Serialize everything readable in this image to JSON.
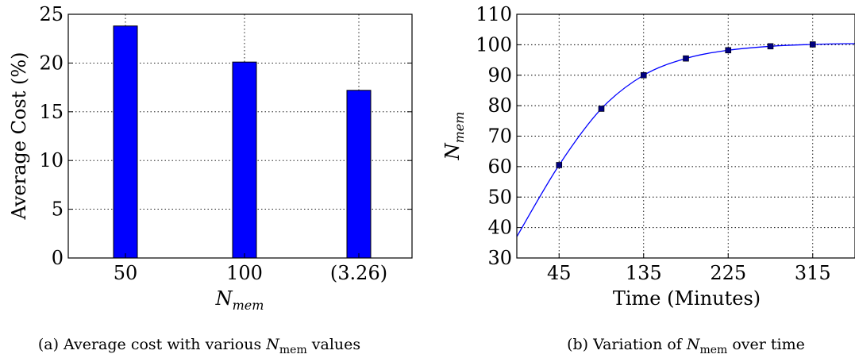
{
  "chart_data": [
    {
      "type": "bar",
      "categories": [
        "50",
        "100",
        "(3.26)"
      ],
      "values": [
        23.8,
        20.1,
        17.2
      ],
      "ylim": [
        0,
        25
      ],
      "yticks": [
        "0",
        "5",
        "10",
        "15",
        "20",
        "25"
      ],
      "ylabel": "Average Cost (%)",
      "xlabel_base": "N",
      "xlabel_sub": "mem",
      "bar_color": "#0000ff",
      "grid": true,
      "caption": {
        "prefix": "(a) Average cost with various ",
        "var_base": "N",
        "var_sub": "mem",
        "suffix": " values"
      }
    },
    {
      "type": "line",
      "x": [
        45,
        90,
        135,
        180,
        225,
        270,
        315
      ],
      "y": [
        60.5,
        79,
        90,
        95.5,
        98.2,
        99.5,
        100.1
      ],
      "curve_start": {
        "x": 0,
        "y": 37
      },
      "curve_end": {
        "x": 360,
        "y": 100.4
      },
      "xlim": [
        0,
        360
      ],
      "ylim": [
        30,
        110
      ],
      "xticks": [
        "45",
        "135",
        "225",
        "315"
      ],
      "yticks": [
        "30",
        "40",
        "50",
        "60",
        "70",
        "80",
        "90",
        "100",
        "110"
      ],
      "xlabel": "Time (Minutes)",
      "ylabel_base": "N",
      "ylabel_sub": "mem",
      "line_color": "#0000ff",
      "marker_color": "#00007f",
      "grid": true,
      "caption": {
        "prefix": "(b) Variation of ",
        "var_base": "N",
        "var_sub": "mem",
        "suffix": " over time"
      }
    }
  ]
}
